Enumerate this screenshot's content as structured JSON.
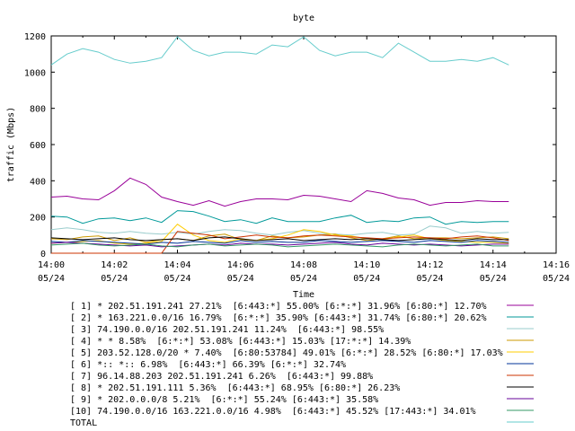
{
  "chart_data": {
    "type": "line",
    "title": "byte",
    "xlabel": "Time",
    "ylabel": "traffic (Mbps)",
    "ylim": [
      0,
      1200
    ],
    "yticks": [
      0,
      200,
      400,
      600,
      800,
      1000,
      1200
    ],
    "xlim": [
      "14:00",
      "14:16"
    ],
    "xtick_labels": [
      [
        "14:00",
        "05/24"
      ],
      [
        "14:02",
        "05/24"
      ],
      [
        "14:04",
        "05/24"
      ],
      [
        "14:06",
        "05/24"
      ],
      [
        "14:08",
        "05/24"
      ],
      [
        "14:10",
        "05/24"
      ],
      [
        "14:12",
        "05/24"
      ],
      [
        "14:14",
        "05/24"
      ],
      [
        "14:16",
        "05/24"
      ]
    ],
    "x": [
      "14:00",
      "14:00:30",
      "14:01",
      "14:01:30",
      "14:02",
      "14:02:30",
      "14:03",
      "14:03:30",
      "14:04",
      "14:04:30",
      "14:05",
      "14:05:30",
      "14:06",
      "14:06:30",
      "14:07",
      "14:07:30",
      "14:08",
      "14:08:30",
      "14:09",
      "14:09:30",
      "14:10",
      "14:10:30",
      "14:11",
      "14:11:30",
      "14:12",
      "14:12:30",
      "14:13",
      "14:13:30",
      "14:14",
      "14:14:30"
    ],
    "grid": false,
    "legend_position": "bottom",
    "series": [
      {
        "name": "[ 1] * 202.51.191.241 27.21%  [6:443:*] 55.00% [6:*:*] 31.96% [6:80:*] 12.70%",
        "color": "#990099",
        "values": [
          310,
          315,
          300,
          295,
          345,
          415,
          380,
          310,
          285,
          265,
          290,
          260,
          285,
          300,
          300,
          295,
          320,
          315,
          300,
          285,
          345,
          330,
          305,
          295,
          265,
          280,
          280,
          290,
          285,
          285
        ]
      },
      {
        "name": "[ 2] * 163.221.0.0/16 16.79%  [6:*:*] 35.90% [6:443:*] 31.74% [6:80:*] 20.62%",
        "color": "#009999",
        "values": [
          205,
          200,
          165,
          190,
          195,
          180,
          195,
          170,
          235,
          230,
          205,
          175,
          185,
          165,
          195,
          175,
          175,
          175,
          195,
          210,
          170,
          180,
          175,
          195,
          200,
          160,
          175,
          170,
          175,
          175
        ]
      },
      {
        "name": "[ 3] 74.190.0.0/16 202.51.191.241 11.24%  [6:443:*] 98.55%",
        "color": "#99cccc",
        "values": [
          130,
          140,
          130,
          115,
          110,
          120,
          110,
          105,
          115,
          105,
          120,
          130,
          125,
          110,
          100,
          115,
          125,
          110,
          105,
          100,
          110,
          115,
          100,
          105,
          150,
          140,
          110,
          120,
          110,
          115
        ]
      },
      {
        "name": "[ 4] * * 8.58%  [6:*:*] 53.08% [6:443:*] 15.03% [17:*:*] 14.39%",
        "color": "#cc9900",
        "values": [
          80,
          75,
          90,
          95,
          70,
          85,
          60,
          75,
          80,
          70,
          95,
          105,
          75,
          70,
          95,
          85,
          90,
          100,
          105,
          85,
          70,
          80,
          95,
          80,
          85,
          85,
          80,
          85,
          90,
          80
        ]
      },
      {
        "name": "[ 5] 203.52.128.0/20 * 7.40%  [6:80:53784] 49.01% [6:*:*] 28.52% [6:80:*] 17.03%",
        "color": "#ffcc00",
        "values": [
          55,
          60,
          65,
          70,
          55,
          50,
          55,
          65,
          160,
          100,
          70,
          60,
          80,
          70,
          80,
          100,
          130,
          120,
          100,
          95,
          80,
          75,
          90,
          100,
          80,
          70,
          65,
          60,
          60,
          55
        ]
      },
      {
        "name": "[ 6] *:: *:: 6.98%  [6:443:*] 66.39% [6:*:*] 32.74%",
        "color": "#003399",
        "values": [
          65,
          60,
          70,
          65,
          60,
          55,
          50,
          60,
          55,
          65,
          60,
          55,
          70,
          60,
          65,
          60,
          60,
          70,
          65,
          60,
          65,
          70,
          65,
          60,
          70,
          65,
          60,
          70,
          65,
          60
        ]
      },
      {
        "name": "[ 7] 96.14.88.203 202.51.191.241 6.26%  [6:443:*] 99.88%",
        "color": "#cc3300",
        "values": [
          0,
          0,
          0,
          0,
          0,
          0,
          0,
          0,
          120,
          110,
          100,
          80,
          90,
          100,
          90,
          85,
          95,
          100,
          95,
          90,
          85,
          80,
          85,
          90,
          85,
          80,
          90,
          95,
          85,
          70
        ]
      },
      {
        "name": "[ 8] * 202.51.191.111 5.36%  [6:443:*] 68.95% [6:80:*] 26.23%",
        "color": "#000000",
        "values": [
          85,
          80,
          75,
          80,
          85,
          75,
          70,
          75,
          80,
          70,
          85,
          90,
          80,
          70,
          75,
          80,
          70,
          75,
          80,
          75,
          80,
          75,
          70,
          75,
          80,
          75,
          70,
          80,
          75,
          75
        ]
      },
      {
        "name": "[ 9] * 202.0.0.0/8 5.21%  [6:*:*] 55.24% [6:443:*] 35.58%",
        "color": "#660099",
        "values": [
          55,
          60,
          55,
          50,
          45,
          40,
          45,
          35,
          40,
          45,
          50,
          45,
          55,
          50,
          50,
          45,
          50,
          55,
          60,
          50,
          45,
          55,
          50,
          45,
          50,
          45,
          40,
          45,
          50,
          50
        ]
      },
      {
        "name": "[10] 74.190.0.0/16 163.221.0.0/16 4.98%  [6:443:*] 45.52% [17:443:*] 34.01%",
        "color": "#339966",
        "values": [
          45,
          50,
          55,
          45,
          40,
          45,
          50,
          40,
          35,
          45,
          50,
          40,
          45,
          50,
          45,
          35,
          40,
          45,
          50,
          45,
          40,
          35,
          45,
          50,
          45,
          40,
          45,
          50,
          40,
          40
        ]
      },
      {
        "name": "TOTAL",
        "color": "#66cccc",
        "values": [
          1040,
          1100,
          1130,
          1110,
          1070,
          1050,
          1060,
          1080,
          1195,
          1120,
          1090,
          1110,
          1110,
          1100,
          1150,
          1140,
          1195,
          1120,
          1090,
          1110,
          1110,
          1080,
          1160,
          1110,
          1060,
          1060,
          1070,
          1060,
          1080,
          1040
        ]
      }
    ]
  }
}
